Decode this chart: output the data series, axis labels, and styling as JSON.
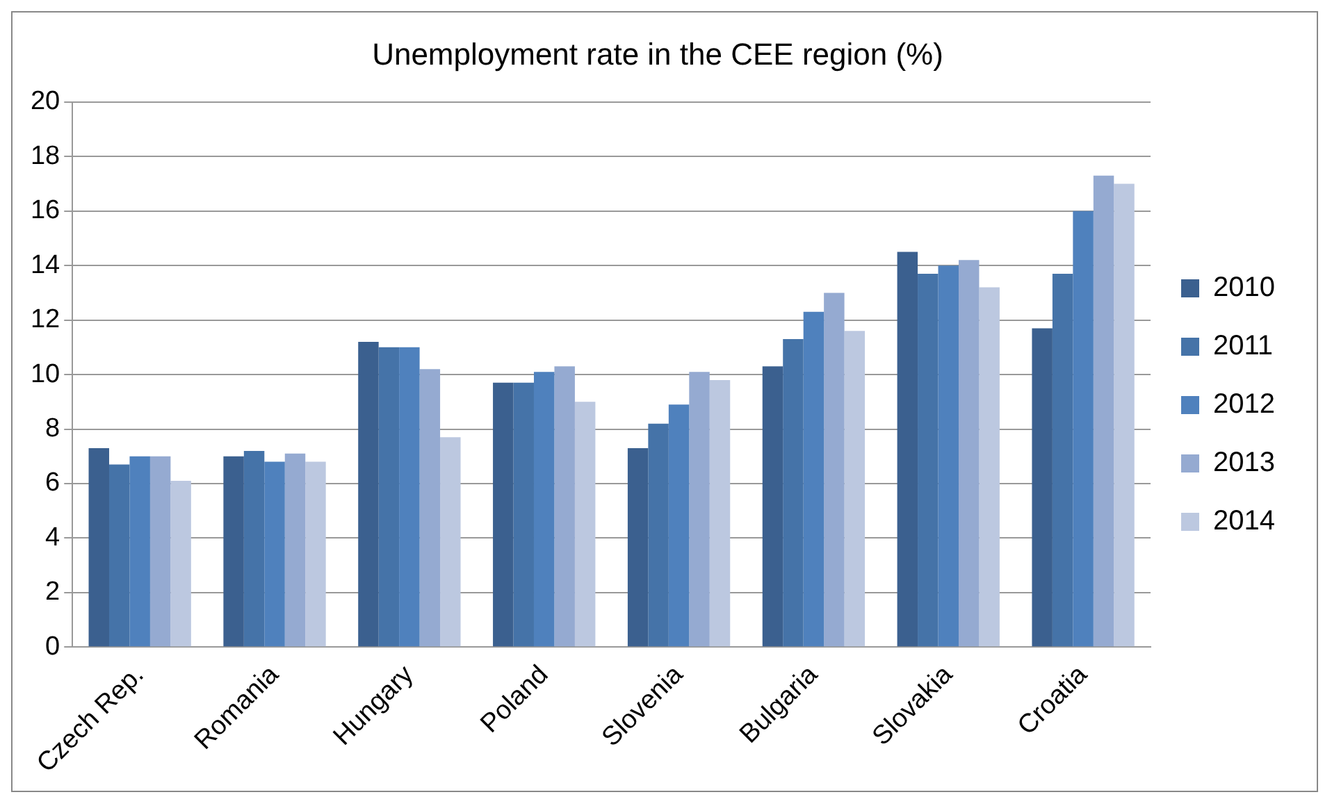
{
  "chart_data": {
    "type": "bar",
    "title": "Unemployment rate in the CEE region (%)",
    "categories": [
      "Czech Rep.",
      "Romania",
      "Hungary",
      "Poland",
      "Slovenia",
      "Bulgaria",
      "Slovakia",
      "Croatia"
    ],
    "series": [
      {
        "name": "2010",
        "color": "#3b608f",
        "values": [
          7.3,
          7.0,
          11.2,
          9.7,
          7.3,
          10.3,
          14.5,
          11.7
        ]
      },
      {
        "name": "2011",
        "color": "#4573a8",
        "values": [
          6.7,
          7.2,
          11.0,
          9.7,
          8.2,
          11.3,
          13.7,
          13.7
        ]
      },
      {
        "name": "2012",
        "color": "#4f81bd",
        "values": [
          7.0,
          6.8,
          11.0,
          10.1,
          8.9,
          12.3,
          14.0,
          16.0
        ]
      },
      {
        "name": "2013",
        "color": "#95aad1",
        "values": [
          7.0,
          7.1,
          10.2,
          10.3,
          10.1,
          13.0,
          14.2,
          17.3
        ]
      },
      {
        "name": "2014",
        "color": "#bcc8e0",
        "values": [
          6.1,
          6.8,
          7.7,
          9.0,
          9.8,
          11.6,
          13.2,
          17.0
        ]
      }
    ],
    "ylim": [
      0,
      20
    ],
    "yticks": [
      0,
      2,
      4,
      6,
      8,
      10,
      12,
      14,
      16,
      18,
      20
    ],
    "grid": "y",
    "legend": "right"
  }
}
